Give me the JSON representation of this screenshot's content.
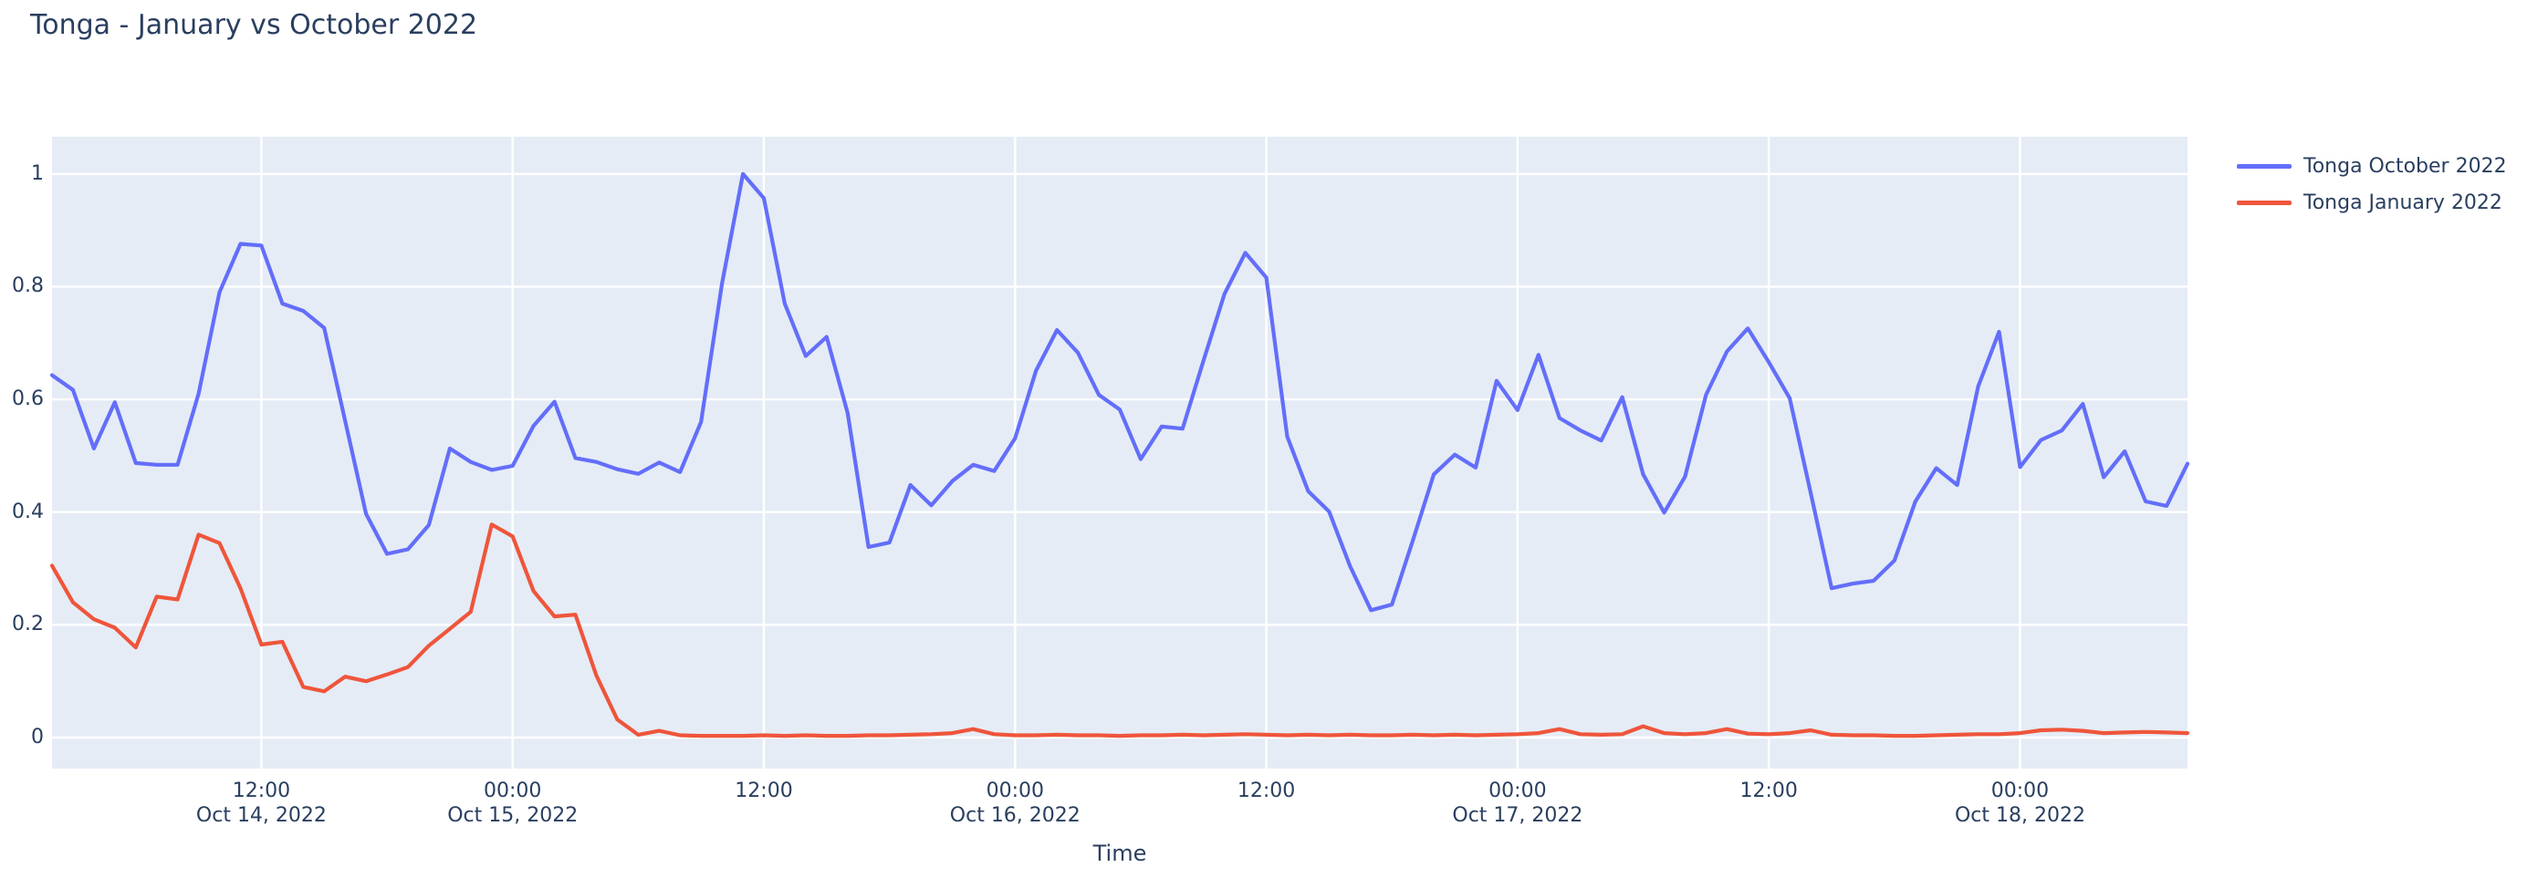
{
  "header": {
    "title": "Tonga - January vs October 2022"
  },
  "legend": {
    "items": [
      {
        "label": "Tonga October 2022",
        "color": "#636efa"
      },
      {
        "label": "Tonga January 2022",
        "color": "#ef553b"
      }
    ]
  },
  "chart_data": {
    "type": "line",
    "title": "Tonga - January vs October 2022",
    "xlabel": "Time",
    "ylabel": "",
    "x_start": "2022-10-14 02:00",
    "x_interval_hours": 1,
    "n_points": 103,
    "ylim": [
      -0.055,
      1.066
    ],
    "grid": true,
    "legend_position": "top-right",
    "plot_background": "#e5ecf6",
    "grid_color": "#ffffff",
    "text_color": "#2a3f5f",
    "y_ticks": [
      {
        "label": "0",
        "value": 0.0
      },
      {
        "label": "0.2",
        "value": 0.2
      },
      {
        "label": "0.4",
        "value": 0.4
      },
      {
        "label": "0.6",
        "value": 0.6
      },
      {
        "label": "0.8",
        "value": 0.8
      },
      {
        "label": "1",
        "value": 1.0
      }
    ],
    "x_ticks": [
      {
        "time": "12:00",
        "date": "Oct 14, 2022",
        "hour_index": 10
      },
      {
        "time": "00:00",
        "date": "Oct 15, 2022",
        "hour_index": 22
      },
      {
        "time": "12:00",
        "date": "",
        "hour_index": 34
      },
      {
        "time": "00:00",
        "date": "Oct 16, 2022",
        "hour_index": 46
      },
      {
        "time": "12:00",
        "date": "",
        "hour_index": 58
      },
      {
        "time": "00:00",
        "date": "Oct 17, 2022",
        "hour_index": 70
      },
      {
        "time": "12:00",
        "date": "",
        "hour_index": 82
      },
      {
        "time": "00:00",
        "date": "Oct 18, 2022",
        "hour_index": 94
      }
    ],
    "series": [
      {
        "name": "Tonga October 2022",
        "color": "#636efa",
        "values": [
          0.643,
          0.617,
          0.513,
          0.595,
          0.487,
          0.484,
          0.484,
          0.61,
          0.79,
          0.876,
          0.873,
          0.77,
          0.757,
          0.727,
          0.562,
          0.397,
          0.326,
          0.334,
          0.377,
          0.513,
          0.489,
          0.475,
          0.482,
          0.553,
          0.596,
          0.496,
          0.489,
          0.476,
          0.468,
          0.488,
          0.471,
          0.56,
          0.805,
          1.0,
          0.957,
          0.77,
          0.677,
          0.711,
          0.576,
          0.338,
          0.346,
          0.448,
          0.412,
          0.455,
          0.484,
          0.473,
          0.531,
          0.651,
          0.723,
          0.683,
          0.608,
          0.582,
          0.494,
          0.552,
          0.548,
          0.669,
          0.787,
          0.86,
          0.816,
          0.534,
          0.437,
          0.401,
          0.304,
          0.226,
          0.236,
          0.35,
          0.467,
          0.502,
          0.479,
          0.633,
          0.581,
          0.679,
          0.567,
          0.545,
          0.527,
          0.604,
          0.467,
          0.399,
          0.463,
          0.608,
          0.685,
          0.726,
          0.666,
          0.602,
          0.434,
          0.265,
          0.273,
          0.278,
          0.314,
          0.419,
          0.478,
          0.448,
          0.623,
          0.72,
          0.48,
          0.528,
          0.545,
          0.592,
          0.462,
          0.508,
          0.419,
          0.411,
          0.486
        ]
      },
      {
        "name": "Tonga January 2022",
        "color": "#ef553b",
        "values": [
          0.305,
          0.24,
          0.21,
          0.195,
          0.16,
          0.25,
          0.245,
          0.36,
          0.345,
          0.265,
          0.165,
          0.17,
          0.09,
          0.082,
          0.108,
          0.1,
          0.112,
          0.125,
          0.163,
          0.193,
          0.223,
          0.378,
          0.357,
          0.26,
          0.215,
          0.218,
          0.11,
          0.032,
          0.005,
          0.012,
          0.004,
          0.003,
          0.003,
          0.003,
          0.004,
          0.003,
          0.004,
          0.003,
          0.003,
          0.004,
          0.004,
          0.005,
          0.006,
          0.008,
          0.015,
          0.006,
          0.004,
          0.004,
          0.005,
          0.004,
          0.004,
          0.003,
          0.004,
          0.004,
          0.005,
          0.004,
          0.005,
          0.006,
          0.005,
          0.004,
          0.005,
          0.004,
          0.005,
          0.004,
          0.004,
          0.005,
          0.004,
          0.005,
          0.004,
          0.005,
          0.006,
          0.008,
          0.015,
          0.006,
          0.005,
          0.006,
          0.02,
          0.008,
          0.006,
          0.008,
          0.015,
          0.007,
          0.006,
          0.008,
          0.013,
          0.005,
          0.004,
          0.004,
          0.003,
          0.003,
          0.004,
          0.005,
          0.006,
          0.006,
          0.008,
          0.013,
          0.014,
          0.012,
          0.008,
          0.009,
          0.01,
          0.009,
          0.008
        ]
      }
    ]
  }
}
